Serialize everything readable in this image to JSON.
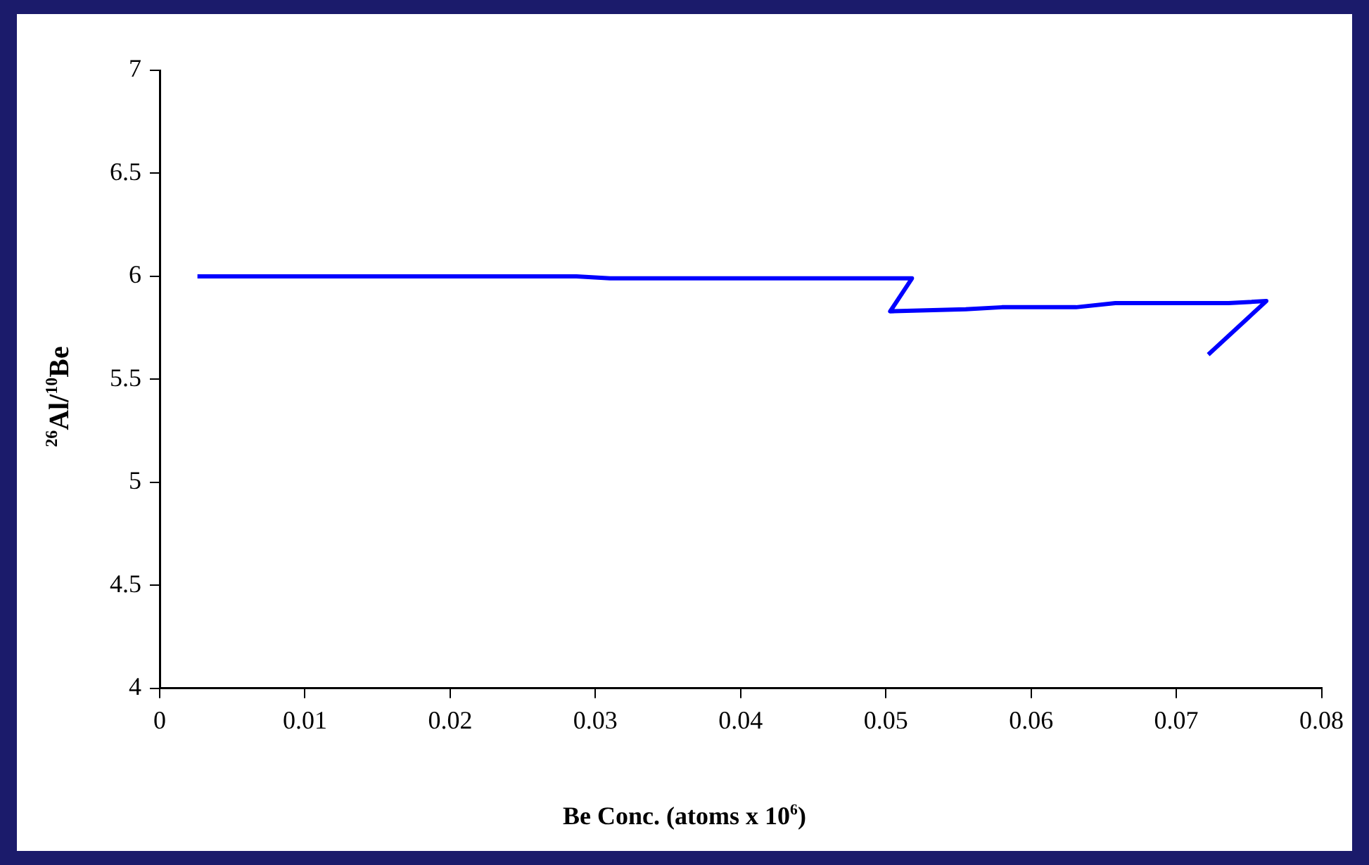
{
  "chart_data": {
    "type": "line",
    "xlabel": "Be Conc. (atoms x 10$^{6}$)",
    "ylabel": "$^{26}$Al/$^{10}$Be",
    "series": [
      {
        "color": "#0000ff",
        "x": [
          0.0026,
          0.0287,
          0.031,
          0.0518,
          0.0503,
          0.0555,
          0.058,
          0.0631,
          0.0658,
          0.0736,
          0.0762,
          0.0722
        ],
        "values": [
          6.0,
          6.0,
          5.99,
          5.99,
          5.83,
          5.84,
          5.85,
          5.85,
          5.87,
          5.87,
          5.88,
          5.62
        ]
      }
    ],
    "xlim": [
      0,
      0.08
    ],
    "xticks": [
      0,
      0.01,
      0.02,
      0.03,
      0.04,
      0.05,
      0.06,
      0.07,
      0.08
    ],
    "ylim": [
      4,
      7
    ],
    "yticks": [
      4,
      4.5,
      5,
      5.5,
      6,
      6.5,
      7
    ],
    "grid": false,
    "legend": false,
    "marker": "none",
    "line_style": "solid"
  }
}
